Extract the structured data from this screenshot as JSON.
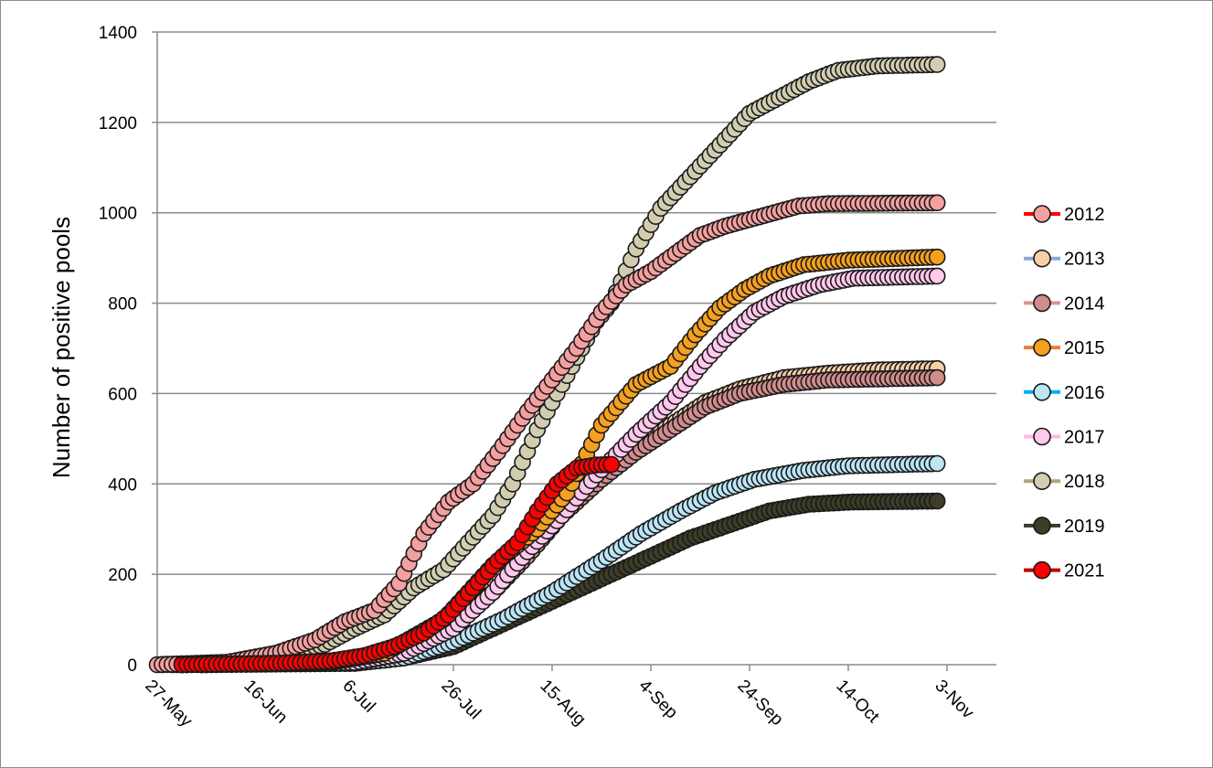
{
  "chart_data": {
    "type": "line",
    "ylabel": "Number of positive pools",
    "xlabel": "",
    "ylim": [
      0,
      1400
    ],
    "yticks": [
      0,
      200,
      400,
      600,
      800,
      1000,
      1200,
      1400
    ],
    "x_is_date": true,
    "xlim": [
      "2000-05-27",
      "2000-11-13"
    ],
    "xticks": [
      {
        "date": "2000-05-27",
        "label": "27-May"
      },
      {
        "date": "2000-06-16",
        "label": "16-Jun"
      },
      {
        "date": "2000-07-06",
        "label": "6-Jul"
      },
      {
        "date": "2000-07-26",
        "label": "26-Jul"
      },
      {
        "date": "2000-08-15",
        "label": "15-Aug"
      },
      {
        "date": "2000-09-04",
        "label": "4-Sep"
      },
      {
        "date": "2000-09-24",
        "label": "24-Sep"
      },
      {
        "date": "2000-10-14",
        "label": "14-Oct"
      },
      {
        "date": "2000-11-03",
        "label": "3-Nov"
      }
    ],
    "grid": "horizontal",
    "legend_position": "right",
    "series": [
      {
        "name": "2012",
        "line_color": "#ff0000",
        "marker_color": "#f4a0a0",
        "points": [
          [
            "2000-05-27",
            0
          ],
          [
            "2000-06-10",
            5
          ],
          [
            "2000-06-20",
            25
          ],
          [
            "2000-06-28",
            55
          ],
          [
            "2000-07-04",
            95
          ],
          [
            "2000-07-10",
            120
          ],
          [
            "2000-07-15",
            180
          ],
          [
            "2000-07-20",
            290
          ],
          [
            "2000-07-25",
            360
          ],
          [
            "2000-07-30",
            400
          ],
          [
            "2000-08-04",
            470
          ],
          [
            "2000-08-10",
            560
          ],
          [
            "2000-08-15",
            630
          ],
          [
            "2000-08-20",
            700
          ],
          [
            "2000-08-25",
            780
          ],
          [
            "2000-08-30",
            840
          ],
          [
            "2000-09-04",
            870
          ],
          [
            "2000-09-09",
            910
          ],
          [
            "2000-09-14",
            950
          ],
          [
            "2000-09-19",
            970
          ],
          [
            "2000-09-24",
            985
          ],
          [
            "2000-09-29",
            1000
          ],
          [
            "2000-10-04",
            1015
          ],
          [
            "2000-10-10",
            1020
          ],
          [
            "2000-11-01",
            1022
          ]
        ]
      },
      {
        "name": "2013",
        "line_color": "#8eaad2",
        "marker_color": "#f8cfa8",
        "points": [
          [
            "2000-06-01",
            0
          ],
          [
            "2000-06-20",
            3
          ],
          [
            "2000-07-06",
            10
          ],
          [
            "2000-07-16",
            40
          ],
          [
            "2000-07-26",
            110
          ],
          [
            "2000-08-03",
            190
          ],
          [
            "2000-08-10",
            260
          ],
          [
            "2000-08-17",
            340
          ],
          [
            "2000-08-25",
            420
          ],
          [
            "2000-09-01",
            480
          ],
          [
            "2000-09-08",
            530
          ],
          [
            "2000-09-15",
            580
          ],
          [
            "2000-09-22",
            610
          ],
          [
            "2000-10-01",
            635
          ],
          [
            "2000-10-10",
            645
          ],
          [
            "2000-10-20",
            652
          ],
          [
            "2000-11-01",
            655
          ]
        ]
      },
      {
        "name": "2014",
        "line_color": "#d69696",
        "marker_color": "#d28c8c",
        "points": [
          [
            "2000-06-01",
            0
          ],
          [
            "2000-06-20",
            3
          ],
          [
            "2000-07-06",
            8
          ],
          [
            "2000-07-16",
            35
          ],
          [
            "2000-07-26",
            100
          ],
          [
            "2000-08-03",
            160
          ],
          [
            "2000-08-10",
            240
          ],
          [
            "2000-08-17",
            330
          ],
          [
            "2000-08-25",
            410
          ],
          [
            "2000-09-01",
            470
          ],
          [
            "2000-09-08",
            520
          ],
          [
            "2000-09-15",
            570
          ],
          [
            "2000-09-22",
            600
          ],
          [
            "2000-10-01",
            620
          ],
          [
            "2000-10-10",
            630
          ],
          [
            "2000-11-01",
            635
          ]
        ]
      },
      {
        "name": "2015",
        "line_color": "#ed7d31",
        "marker_color": "#f5a01e",
        "points": [
          [
            "2000-06-05",
            0
          ],
          [
            "2000-07-01",
            5
          ],
          [
            "2000-07-12",
            25
          ],
          [
            "2000-07-24",
            100
          ],
          [
            "2000-08-03",
            220
          ],
          [
            "2000-08-12",
            300
          ],
          [
            "2000-08-18",
            380
          ],
          [
            "2000-08-25",
            530
          ],
          [
            "2000-09-01",
            620
          ],
          [
            "2000-09-08",
            660
          ],
          [
            "2000-09-13",
            730
          ],
          [
            "2000-09-18",
            790
          ],
          [
            "2000-09-23",
            830
          ],
          [
            "2000-09-28",
            860
          ],
          [
            "2000-10-05",
            885
          ],
          [
            "2000-10-14",
            895
          ],
          [
            "2000-11-01",
            902
          ]
        ]
      },
      {
        "name": "2016",
        "line_color": "#00b0f0",
        "marker_color": "#bce5f5",
        "points": [
          [
            "2000-06-05",
            0
          ],
          [
            "2000-07-06",
            3
          ],
          [
            "2000-07-16",
            15
          ],
          [
            "2000-07-26",
            50
          ],
          [
            "2000-08-05",
            100
          ],
          [
            "2000-08-15",
            160
          ],
          [
            "2000-08-25",
            230
          ],
          [
            "2000-09-02",
            290
          ],
          [
            "2000-09-10",
            340
          ],
          [
            "2000-09-17",
            380
          ],
          [
            "2000-09-25",
            410
          ],
          [
            "2000-10-05",
            430
          ],
          [
            "2000-10-14",
            440
          ],
          [
            "2000-11-01",
            445
          ]
        ]
      },
      {
        "name": "2017",
        "line_color": "#ffb8e8",
        "marker_color": "#ffc8ec",
        "points": [
          [
            "2000-06-05",
            0
          ],
          [
            "2000-07-06",
            5
          ],
          [
            "2000-07-16",
            25
          ],
          [
            "2000-07-26",
            80
          ],
          [
            "2000-08-03",
            160
          ],
          [
            "2000-08-10",
            250
          ],
          [
            "2000-08-17",
            330
          ],
          [
            "2000-08-24",
            420
          ],
          [
            "2000-09-01",
            510
          ],
          [
            "2000-09-08",
            580
          ],
          [
            "2000-09-14",
            660
          ],
          [
            "2000-09-19",
            720
          ],
          [
            "2000-09-25",
            780
          ],
          [
            "2000-10-01",
            815
          ],
          [
            "2000-10-08",
            840
          ],
          [
            "2000-10-15",
            855
          ],
          [
            "2000-11-01",
            860
          ]
        ]
      },
      {
        "name": "2018",
        "line_color": "#b3a47e",
        "marker_color": "#d2cdb0",
        "points": [
          [
            "2000-05-28",
            0
          ],
          [
            "2000-06-10",
            5
          ],
          [
            "2000-06-20",
            20
          ],
          [
            "2000-06-30",
            45
          ],
          [
            "2000-07-06",
            80
          ],
          [
            "2000-07-12",
            110
          ],
          [
            "2000-07-18",
            170
          ],
          [
            "2000-07-24",
            210
          ],
          [
            "2000-07-29",
            270
          ],
          [
            "2000-08-03",
            330
          ],
          [
            "2000-08-07",
            400
          ],
          [
            "2000-08-12",
            520
          ],
          [
            "2000-08-18",
            640
          ],
          [
            "2000-08-24",
            760
          ],
          [
            "2000-08-27",
            800
          ],
          [
            "2000-09-01",
            920
          ],
          [
            "2000-09-06",
            1010
          ],
          [
            "2000-09-12",
            1080
          ],
          [
            "2000-09-18",
            1150
          ],
          [
            "2000-09-24",
            1220
          ],
          [
            "2000-09-30",
            1255
          ],
          [
            "2000-10-06",
            1290
          ],
          [
            "2000-10-12",
            1315
          ],
          [
            "2000-10-20",
            1325
          ],
          [
            "2000-11-01",
            1328
          ]
        ]
      },
      {
        "name": "2019",
        "line_color": "#3a3a28",
        "marker_color": "#3d3d28",
        "points": [
          [
            "2000-05-30",
            0
          ],
          [
            "2000-07-06",
            3
          ],
          [
            "2000-07-16",
            15
          ],
          [
            "2000-07-26",
            40
          ],
          [
            "2000-08-05",
            90
          ],
          [
            "2000-08-15",
            140
          ],
          [
            "2000-08-25",
            190
          ],
          [
            "2000-09-04",
            240
          ],
          [
            "2000-09-12",
            280
          ],
          [
            "2000-09-20",
            310
          ],
          [
            "2000-09-28",
            340
          ],
          [
            "2000-10-06",
            355
          ],
          [
            "2000-10-15",
            360
          ],
          [
            "2000-11-01",
            362
          ]
        ]
      },
      {
        "name": "2021",
        "line_color": "#c00000",
        "marker_color": "#ff0000",
        "points": [
          [
            "2000-06-01",
            0
          ],
          [
            "2000-06-20",
            3
          ],
          [
            "2000-07-01",
            8
          ],
          [
            "2000-07-08",
            20
          ],
          [
            "2000-07-14",
            40
          ],
          [
            "2000-07-20",
            70
          ],
          [
            "2000-07-25",
            110
          ],
          [
            "2000-07-30",
            170
          ],
          [
            "2000-08-04",
            230
          ],
          [
            "2000-08-08",
            270
          ],
          [
            "2000-08-12",
            340
          ],
          [
            "2000-08-16",
            400
          ],
          [
            "2000-08-20",
            435
          ],
          [
            "2000-08-24",
            442
          ],
          [
            "2000-08-27",
            443
          ]
        ]
      }
    ]
  }
}
